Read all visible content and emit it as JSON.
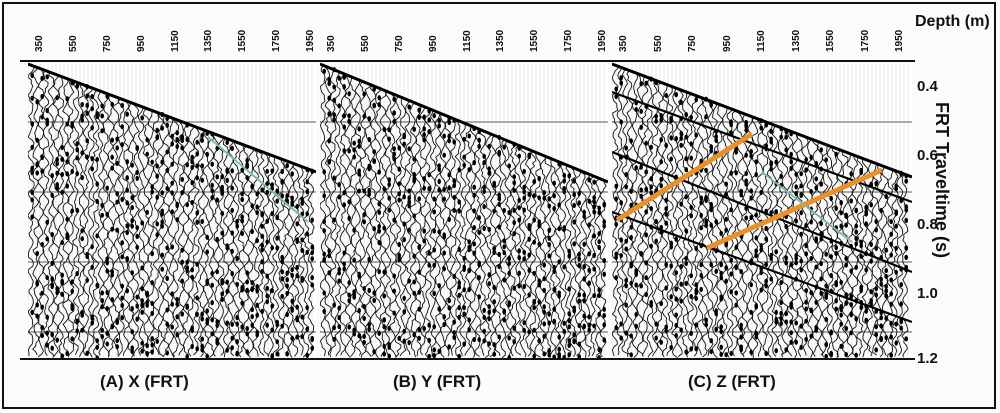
{
  "depth_axis": {
    "title": "Depth (m)",
    "ticks": [
      "350",
      "550",
      "750",
      "950",
      "1150",
      "1350",
      "1550",
      "1750",
      "1950"
    ]
  },
  "time_axis": {
    "label": "FRT Traveltime (s)",
    "ticks": [
      "0.4",
      "0.6",
      "0.8",
      "1.0",
      "1.2"
    ]
  },
  "panels": [
    {
      "caption": "(A)  X (FRT)"
    },
    {
      "caption": "(B)  Y (FRT)"
    },
    {
      "caption": "(C)  Z (FRT)"
    }
  ],
  "colors": {
    "highlight": "#e8912a",
    "faint_pick": "#7fb9b0",
    "trace": "#111111"
  }
}
